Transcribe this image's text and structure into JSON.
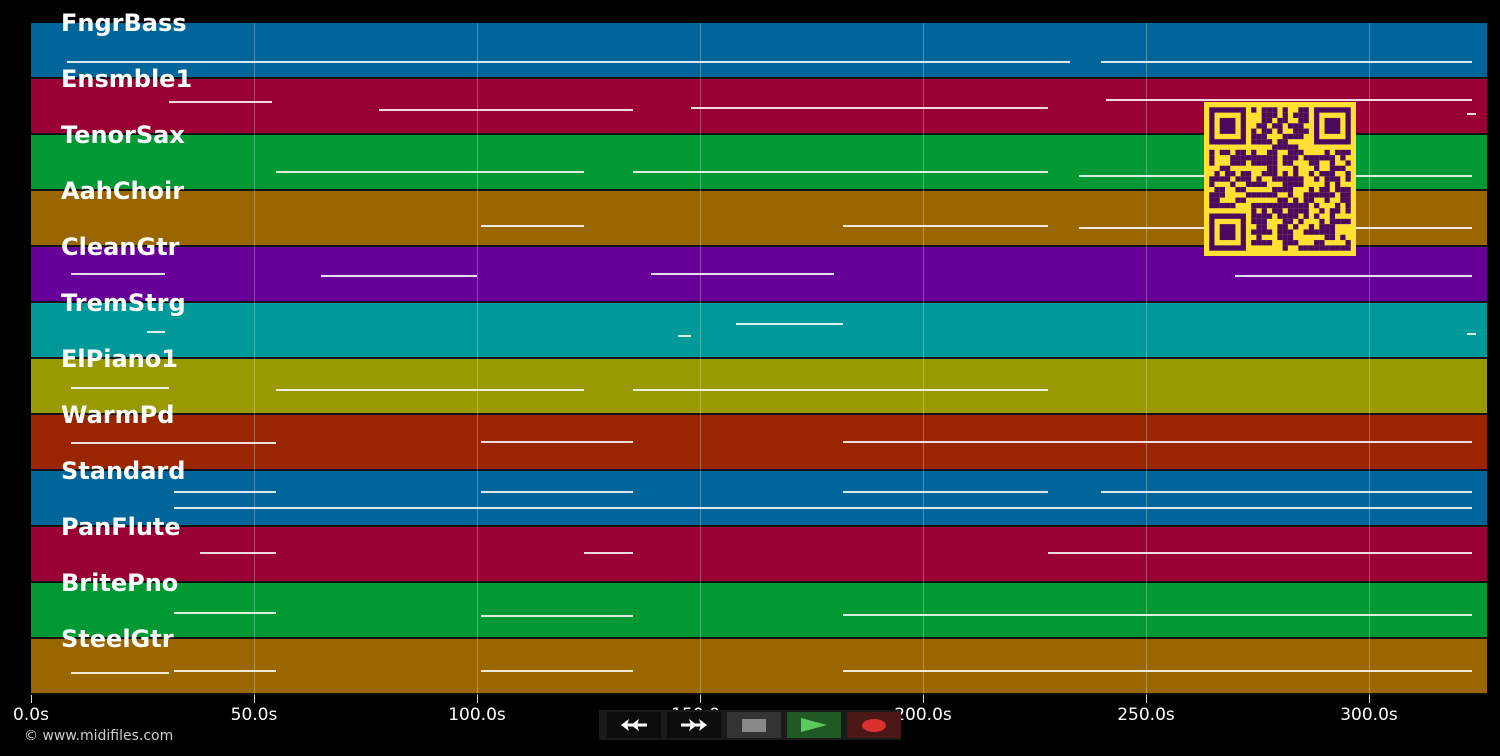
{
  "tracks": [
    {
      "name": "FngrBass",
      "color": "#006699"
    },
    {
      "name": "Ensmble1",
      "color": "#990033"
    },
    {
      "name": "TenorSax",
      "color": "#009933"
    },
    {
      "name": "AahChoir",
      "color": "#996600"
    },
    {
      "name": "CleanGtr",
      "color": "#660099"
    },
    {
      "name": "TremStrg",
      "color": "#009999"
    },
    {
      "name": "ElPiano1",
      "color": "#999900"
    },
    {
      "name": "WarmPd",
      "color": "#992600"
    },
    {
      "name": "Standard",
      "color": "#006699"
    },
    {
      "name": "PanFlute",
      "color": "#990033"
    },
    {
      "name": "BritePno",
      "color": "#009933"
    },
    {
      "name": "SteelGtr",
      "color": "#996600"
    }
  ],
  "time_axis": {
    "ticks": [
      "0.0s",
      "50.0s",
      "100.0s",
      "150.0s",
      "200.0s",
      "250.0s",
      "300.0s"
    ],
    "tick_values": [
      0,
      50,
      100,
      150,
      200,
      250,
      300
    ]
  },
  "transport": {
    "rewind": "rewind-icon",
    "fast_forward": "fast-forward-icon",
    "stop": "stop-icon",
    "play": "play-icon",
    "record": "record-icon",
    "play_color": "#5ec95e",
    "record_color": "#d93030"
  },
  "footer": {
    "copyright": "© www.midifiles.com"
  },
  "qr_code": {
    "fg": "#4b0a5e",
    "bg": "#ffe033"
  }
}
